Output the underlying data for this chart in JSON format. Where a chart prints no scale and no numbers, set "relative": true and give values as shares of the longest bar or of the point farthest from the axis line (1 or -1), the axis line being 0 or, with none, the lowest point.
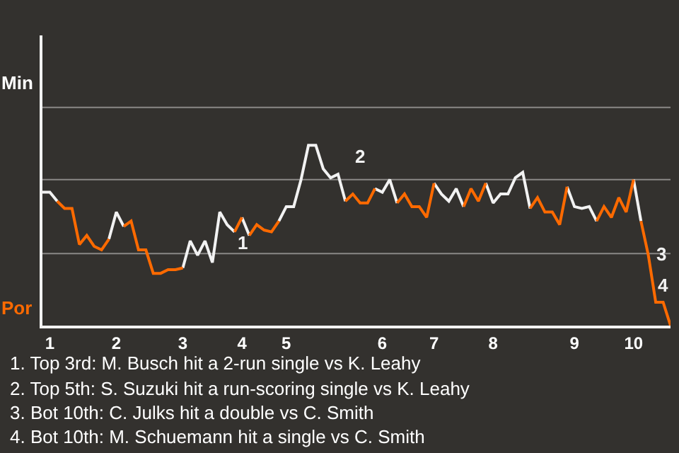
{
  "chart_data": {
    "type": "line",
    "relative": true,
    "categories": [
      null,
      "1",
      null,
      null,
      null,
      null,
      null,
      null,
      null,
      null,
      "2",
      null,
      null,
      null,
      null,
      null,
      null,
      null,
      null,
      "3",
      null,
      null,
      null,
      null,
      null,
      null,
      null,
      "4",
      null,
      null,
      null,
      null,
      null,
      "5",
      null,
      null,
      null,
      null,
      null,
      null,
      null,
      null,
      null,
      null,
      null,
      null,
      "6",
      null,
      null,
      null,
      null,
      null,
      null,
      "7",
      null,
      null,
      null,
      null,
      null,
      null,
      null,
      "8",
      null,
      null,
      null,
      null,
      null,
      null,
      null,
      null,
      null,
      null,
      "9",
      null,
      null,
      null,
      null,
      null,
      null,
      null,
      "10",
      null,
      null,
      null,
      null,
      null
    ],
    "marker": "none",
    "line_style": "solid",
    "ref_lines": [
      {
        "axis": "y",
        "value": 0.4,
        "color": "#8a8886"
      },
      {
        "axis": "y",
        "value": 0.81,
        "color": "#8a8886"
      },
      {
        "axis": "y",
        "value": 1.21,
        "color": "#8a8886"
      }
    ],
    "series": [
      {
        "color": "#f2f2f2",
        "values": [
          0.74,
          0.74,
          0.69,
          null,
          null,
          null,
          null,
          null,
          null,
          0.48,
          0.63,
          0.55,
          null,
          null,
          null,
          null,
          null,
          null,
          null,
          0.32,
          0.47,
          0.39,
          0.47,
          0.35,
          0.63,
          0.56,
          0.52,
          null,
          null,
          null,
          null,
          null,
          0.58,
          0.66,
          0.66,
          0.81,
          1,
          1,
          0.87,
          0.82,
          0.84,
          0.69,
          null,
          null,
          null,
          0.76,
          0.74,
          0.81,
          0.68,
          null,
          null,
          null,
          null,
          0.79,
          0.73,
          0.69,
          0.76,
          0.66,
          null,
          null,
          0.79,
          0.68,
          0.73,
          0.73,
          0.82,
          0.85,
          0.65,
          null,
          null,
          null,
          null,
          0.77,
          0.66,
          0.65,
          0.66,
          0.58,
          null,
          null,
          null,
          null,
          null,
          null,
          null,
          null,
          null,
          null
        ]
      },
      {
        "color": "#f2f2f2",
        "values": [
          null,
          null,
          null,
          null,
          null,
          null,
          null,
          null,
          null,
          null,
          null,
          null,
          null,
          null,
          null,
          null,
          null,
          null,
          null,
          null,
          null,
          null,
          null,
          null,
          null,
          null,
          null,
          0.6,
          0.5,
          null,
          null,
          null,
          null,
          null,
          null,
          null,
          null,
          null,
          null,
          null,
          null,
          null,
          null,
          null,
          null,
          null,
          null,
          null,
          null,
          null,
          null,
          null,
          null,
          null,
          null,
          null,
          null,
          null,
          null,
          null,
          null,
          null,
          null,
          null,
          null,
          null,
          null,
          null,
          null,
          null,
          null,
          null,
          null,
          null,
          null,
          null,
          null,
          null,
          null,
          null,
          0.81,
          0.58,
          null,
          null,
          null,
          null
        ]
      },
      {
        "color": "#ff6a00",
        "values": [
          null,
          null,
          0.69,
          0.65,
          0.65,
          0.45,
          0.5,
          0.44,
          0.42,
          0.48,
          null,
          0.55,
          0.58,
          0.42,
          0.42,
          0.29,
          0.29,
          0.31,
          0.31,
          0.32,
          null,
          null,
          null,
          null,
          null,
          null,
          null,
          null,
          0.5,
          0.56,
          0.53,
          0.52,
          0.58,
          null,
          null,
          null,
          null,
          null,
          null,
          null,
          null,
          0.69,
          0.73,
          0.68,
          0.68,
          0.76,
          null,
          null,
          0.68,
          0.73,
          0.66,
          0.66,
          0.6,
          0.79,
          null,
          null,
          null,
          0.66,
          0.76,
          0.69,
          0.79,
          null,
          null,
          null,
          null,
          null,
          0.65,
          0.71,
          0.63,
          0.63,
          0.56,
          0.77,
          null,
          null,
          null,
          0.58,
          0.66,
          0.6,
          0.71,
          0.63,
          0.81,
          null,
          null,
          null,
          null,
          null
        ]
      },
      {
        "color": "#ff6a00",
        "values": [
          null,
          null,
          null,
          null,
          null,
          null,
          null,
          null,
          null,
          null,
          null,
          null,
          null,
          null,
          null,
          null,
          null,
          null,
          null,
          null,
          null,
          null,
          null,
          null,
          null,
          null,
          0.52,
          0.6,
          null,
          null,
          null,
          null,
          null,
          null,
          null,
          null,
          null,
          null,
          null,
          null,
          null,
          null,
          null,
          null,
          null,
          null,
          null,
          null,
          null,
          null,
          null,
          null,
          null,
          null,
          null,
          null,
          null,
          null,
          null,
          null,
          null,
          null,
          null,
          null,
          null,
          null,
          null,
          null,
          null,
          null,
          null,
          null,
          null,
          null,
          null,
          null,
          null,
          null,
          null,
          null,
          null,
          0.58,
          0.39,
          0.13,
          0.13,
          0
        ]
      }
    ],
    "annotations": [
      "Min",
      "Por",
      "1",
      "2",
      "3",
      "4",
      "1. Top 3rd: M. Busch hit a 2-run single vs K. Leahy",
      "2. Top 5th: S. Suzuki hit a run-scoring single vs K. Leahy",
      "3. Bot 10th: C. Julks hit a double vs C. Smith",
      "4. Bot 10th: M. Schuemann hit a single vs C. Smith"
    ]
  }
}
